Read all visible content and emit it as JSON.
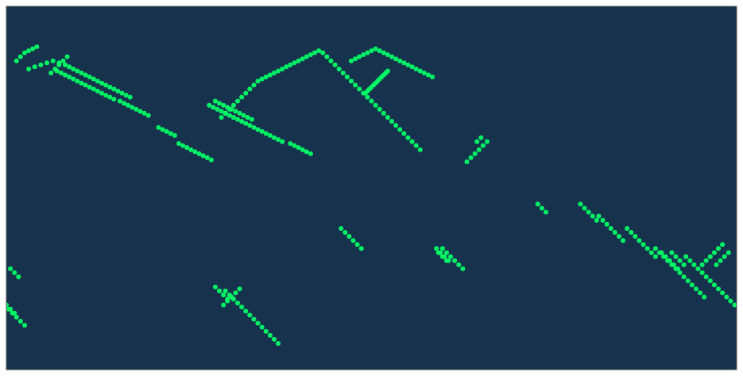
{
  "chart_data": {
    "type": "scatter",
    "color": "#00FF66",
    "xlim": [
      -180,
      180
    ],
    "ylim": [
      -90,
      90
    ],
    "tick_labels": false,
    "grid": false,
    "x": [
      -169,
      -166,
      -163,
      -160,
      -157,
      -154,
      -151,
      -149,
      -147,
      -145,
      -143,
      -141,
      -139,
      -137,
      -135,
      -133,
      -131,
      -129,
      -127,
      -125,
      -123,
      -121,
      -119,
      -124,
      -122,
      -120,
      -118,
      -116,
      -114,
      -112,
      -110,
      -77,
      -75,
      -73,
      -71,
      -69,
      -67,
      -65,
      -63,
      -61,
      -59,
      -74,
      -72,
      -70,
      -68,
      -66,
      -64,
      -62,
      -60,
      -58,
      -56,
      -54,
      -52,
      -50,
      -48,
      -46,
      -44,
      -42,
      -40,
      -38,
      -36,
      -34,
      -32,
      -30,
      -28,
      -26,
      -24,
      -22,
      -20,
      -18,
      -16,
      -14,
      -12,
      -10,
      -8,
      -6,
      -4,
      -2,
      0,
      2,
      4,
      6,
      8,
      10,
      12,
      14,
      16,
      18,
      20,
      22,
      24,
      -10,
      -8,
      -6,
      -4,
      -2,
      0,
      2,
      4,
      6,
      8,
      10,
      12,
      14,
      16,
      18,
      20,
      22,
      24,
      26,
      28,
      30,
      -175,
      -173,
      -171,
      -169,
      -167,
      -165,
      -155,
      -153,
      -151,
      -149,
      -147,
      -145,
      -143,
      -141,
      -139,
      -137,
      -135,
      -133,
      -131,
      -129,
      -127,
      -80,
      -78,
      -76,
      -74,
      -72,
      -70,
      -68,
      -66,
      -64,
      -62,
      -60,
      -58,
      -56,
      -54,
      -52,
      -50,
      -48,
      -46,
      -44,
      -40,
      -38,
      -36,
      -34,
      -32,
      -30,
      155,
      157,
      159,
      161,
      163,
      165,
      167,
      169,
      171,
      173,
      175,
      177,
      179,
      -179,
      -177,
      -175,
      -173,
      -171,
      140,
      142,
      144,
      146,
      148,
      150,
      152,
      154,
      156,
      158,
      160,
      162,
      164,
      126,
      128,
      130,
      132,
      134,
      136,
      138,
      140,
      112,
      114,
      116,
      118,
      120,
      122,
      124,
      47,
      49,
      51,
      53,
      55,
      57,
      32,
      34,
      36,
      38,
      -72,
      -70,
      -68,
      -66,
      -64,
      -62,
      -60,
      -58,
      -56,
      -54,
      -52,
      -50,
      -48,
      -46,
      -77,
      -75,
      -73,
      -71,
      -65,
      -67,
      -69,
      -71,
      -73,
      163,
      165,
      167,
      169,
      171,
      173,
      -178,
      -176,
      -174,
      148,
      150,
      152,
      154,
      82,
      84,
      86,
      52,
      54,
      33,
      35,
      37,
      -158,
      -156,
      -154,
      -152,
      -150,
      -3,
      -2,
      -1,
      0,
      1,
      2,
      3,
      4,
      5,
      6,
      7,
      8,
      -180,
      -178,
      -176,
      170,
      172,
      174,
      176,
      143,
      145,
      147,
      149,
      151,
      -95,
      -93,
      -91,
      -89,
      -87,
      -85,
      -83,
      -81,
      -79,
      -105,
      -103,
      -101,
      -99,
      -97,
      -15,
      -13,
      -11,
      -9,
      -7,
      -5,
      35,
      37,
      39,
      41,
      43,
      45,
      103,
      105,
      107,
      109,
      111
    ],
    "values": [
      59,
      60,
      61,
      62,
      63,
      62,
      61,
      60,
      59,
      58,
      57,
      56,
      55,
      54,
      53,
      52,
      51,
      50,
      49,
      48,
      47,
      46,
      45,
      43,
      42,
      41,
      40,
      39,
      38,
      37,
      36,
      43,
      42,
      41,
      40,
      39,
      38,
      37,
      36,
      35,
      34,
      35,
      37,
      39,
      41,
      43,
      45,
      47,
      49,
      51,
      53,
      54,
      55,
      56,
      57,
      58,
      59,
      60,
      61,
      62,
      63,
      64,
      65,
      66,
      67,
      68,
      67,
      65,
      63,
      61,
      59,
      57,
      55,
      53,
      51,
      49,
      47,
      45,
      43,
      41,
      39,
      37,
      35,
      33,
      31,
      29,
      27,
      25,
      23,
      21,
      19,
      63,
      64,
      65,
      66,
      67,
      68,
      69,
      68,
      67,
      66,
      65,
      64,
      63,
      62,
      61,
      60,
      59,
      58,
      57,
      56,
      55,
      63,
      65,
      67,
      68,
      69,
      70,
      58,
      57,
      56,
      55,
      54,
      53,
      52,
      51,
      50,
      49,
      48,
      47,
      46,
      45,
      44,
      41,
      40,
      39,
      38,
      37,
      36,
      35,
      34,
      33,
      32,
      31,
      30,
      29,
      28,
      27,
      26,
      25,
      24,
      23,
      22,
      21,
      20,
      19,
      18,
      17,
      -34,
      -36,
      -38,
      -40,
      -42,
      -44,
      -46,
      -48,
      -50,
      -52,
      -54,
      -56,
      -58,
      -60,
      -62,
      -64,
      -66,
      -68,
      -30,
      -32,
      -34,
      -36,
      -38,
      -40,
      -42,
      -44,
      -46,
      -48,
      -50,
      -52,
      -54,
      -20,
      -22,
      -24,
      -26,
      -28,
      -30,
      -32,
      -34,
      -14,
      -16,
      -18,
      -20,
      -22,
      -24,
      -26,
      13,
      15,
      17,
      19,
      21,
      23,
      -30,
      -32,
      -34,
      -36,
      -51,
      -53,
      -55,
      -57,
      -59,
      -61,
      -63,
      -65,
      -67,
      -69,
      -71,
      -73,
      -75,
      -77,
      -49,
      -51,
      -53,
      -55,
      -50,
      -52,
      -54,
      -56,
      -58,
      -38,
      -36,
      -34,
      -32,
      -30,
      -28,
      -40,
      -42,
      -44,
      -32,
      -34,
      -36,
      -38,
      -8,
      -10,
      -12,
      23,
      25,
      -32,
      -34,
      -36,
      57,
      59,
      61,
      63,
      65,
      47,
      48,
      49,
      50,
      51,
      52,
      53,
      54,
      55,
      56,
      57,
      58,
      -58,
      -60,
      -62,
      -38,
      -36,
      -34,
      -32,
      -32,
      -34,
      -36,
      -38,
      -40,
      22,
      21,
      20,
      19,
      18,
      17,
      16,
      15,
      14,
      30,
      29,
      28,
      27,
      26,
      -20,
      -22,
      -24,
      -26,
      -28,
      -30,
      -30,
      -32,
      -34,
      -36,
      -38,
      -40,
      -8,
      -10,
      -12,
      -14,
      -16
    ]
  }
}
